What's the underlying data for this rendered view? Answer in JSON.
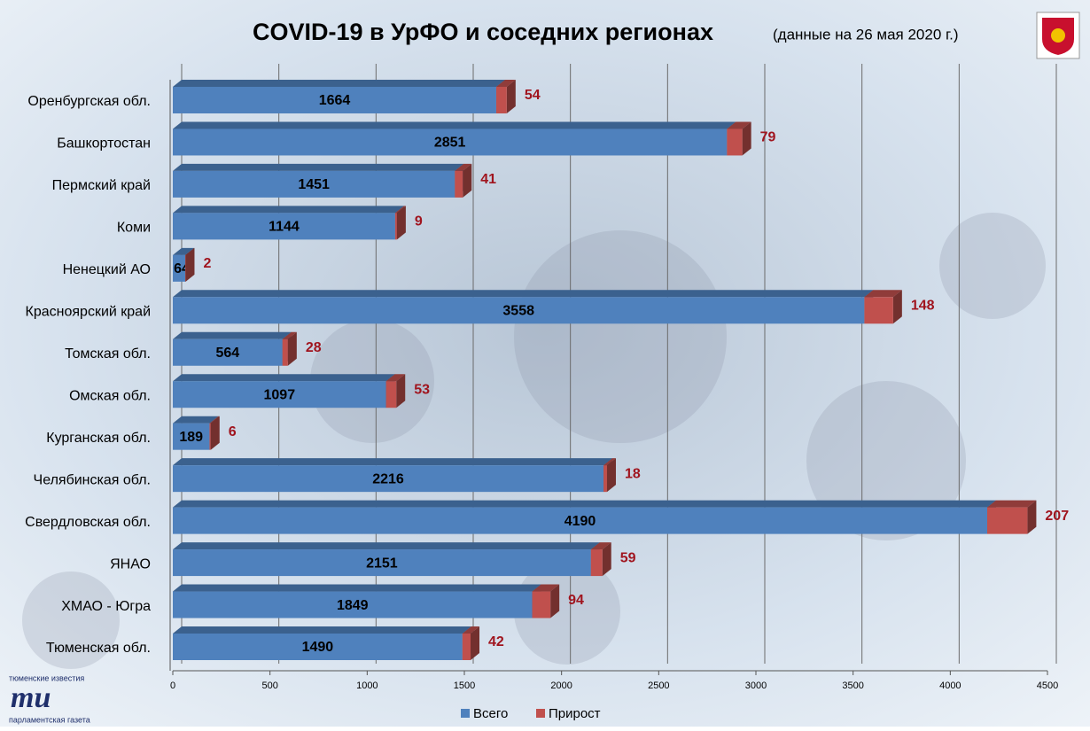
{
  "chart_data": {
    "type": "stacked-bar-horizontal",
    "title": "COVID-19 в УрФО и соседних регионах",
    "subtitle": "(данные  на 26 мая 2020 г.)",
    "categories": [
      "Оренбургская обл.",
      "Башкортостан",
      "Пермский край",
      "Коми",
      "Ненецкий АО",
      "Красноярский край",
      "Томская обл.",
      "Омская обл.",
      "Курганская обл.",
      "Челябинская обл.",
      "Свердловская обл.",
      "ЯНАО",
      "ХМАО - Югра",
      "Тюменская обл."
    ],
    "series": [
      {
        "name": "Всего",
        "color": "#4f81bd",
        "values": [
          1664,
          2851,
          1451,
          1144,
          64,
          3558,
          564,
          1097,
          189,
          2216,
          4190,
          2151,
          1849,
          1490
        ]
      },
      {
        "name": "Прирост",
        "color": "#c0504d",
        "values": [
          54,
          79,
          41,
          9,
          2,
          148,
          28,
          53,
          6,
          18,
          207,
          59,
          94,
          42
        ]
      }
    ],
    "xlim": [
      0,
      4500
    ],
    "xticks": [
      0,
      500,
      1000,
      1500,
      2000,
      2500,
      3000,
      3500,
      4000,
      4500
    ],
    "grid": true,
    "legend": "bottom"
  },
  "logo": {
    "top": "тюменские известия",
    "mark": "ти",
    "bottom": "парламентская газета"
  }
}
